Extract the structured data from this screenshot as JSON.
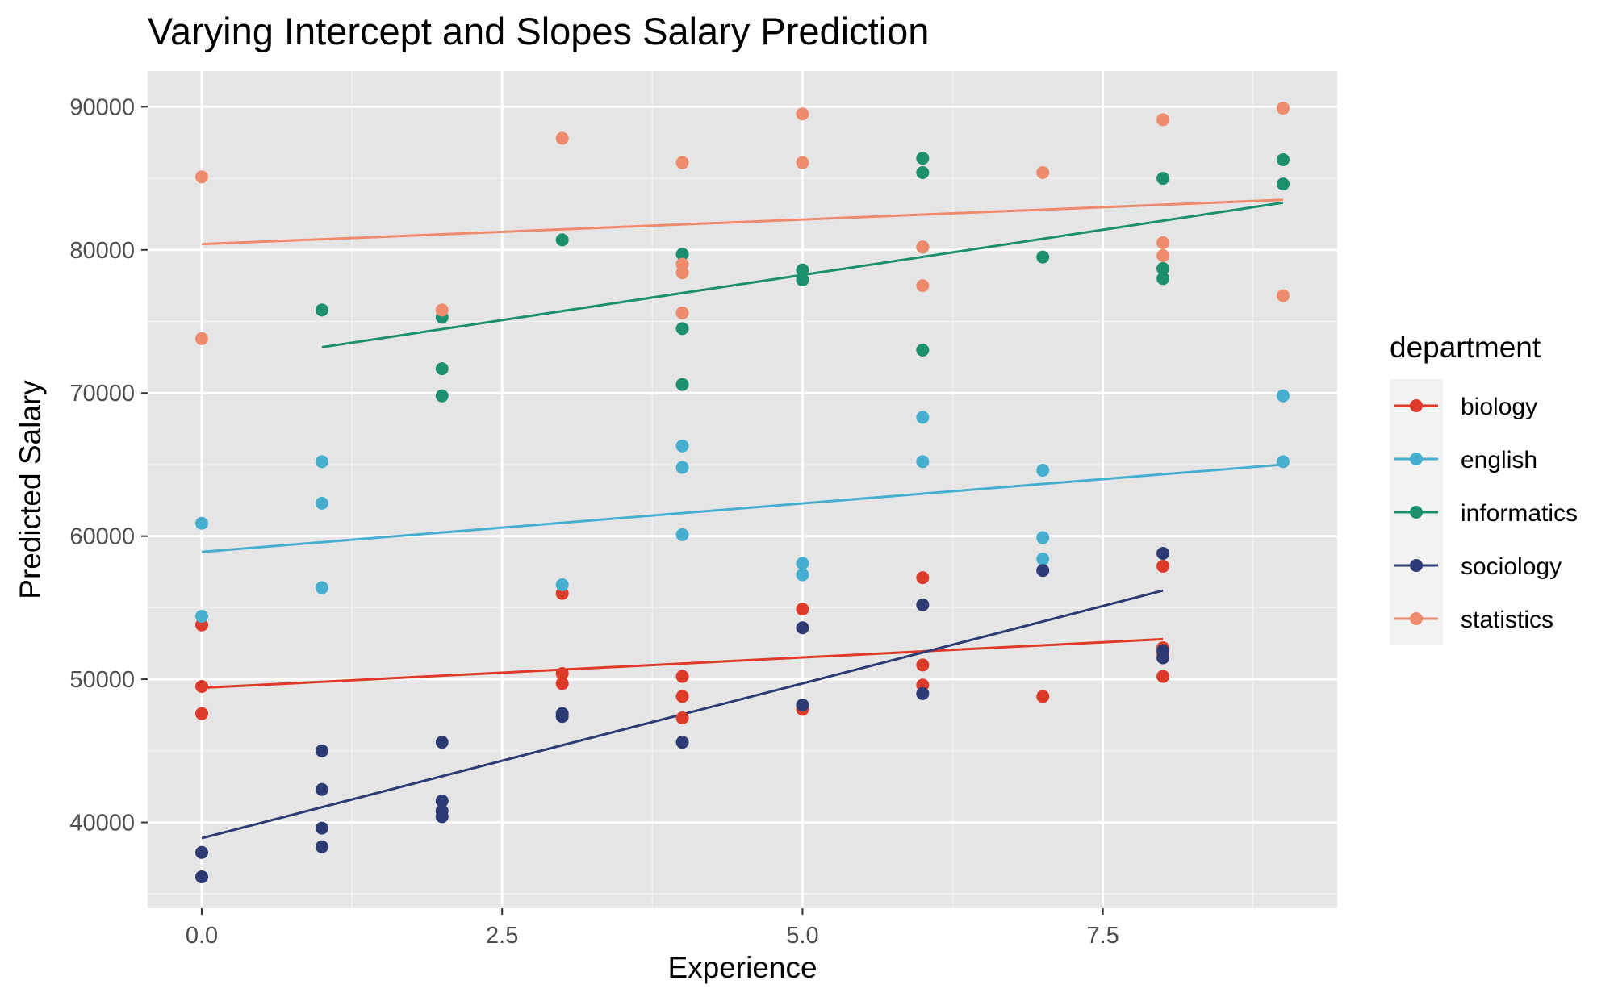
{
  "chart_data": {
    "type": "scatter",
    "title": "Varying Intercept and Slopes Salary Prediction",
    "xlabel": "Experience",
    "ylabel": "Predicted Salary",
    "xlim": [
      -0.45,
      9.45
    ],
    "ylim": [
      34000,
      92500
    ],
    "x_ticks": [
      0,
      2.5,
      5,
      7.5
    ],
    "x_tick_labels": [
      "0.0",
      "2.5",
      "5.0",
      "7.5"
    ],
    "y_ticks": [
      40000,
      50000,
      60000,
      70000,
      80000,
      90000
    ],
    "y_tick_labels": [
      "40000",
      "50000",
      "60000",
      "70000",
      "80000",
      "90000"
    ],
    "grid": true,
    "panel_background": "#e5e5e5",
    "legend": {
      "title": "department",
      "position": "right"
    },
    "series": [
      {
        "name": "biology",
        "color": "#de3a2a",
        "points": [
          [
            0,
            53800
          ],
          [
            0,
            49500
          ],
          [
            0,
            47600
          ],
          [
            3,
            56000
          ],
          [
            3,
            50400
          ],
          [
            3,
            49700
          ],
          [
            4,
            50200
          ],
          [
            4,
            48800
          ],
          [
            4,
            47300
          ],
          [
            5,
            54900
          ],
          [
            5,
            47900
          ],
          [
            6,
            57100
          ],
          [
            6,
            51000
          ],
          [
            6,
            49600
          ],
          [
            7,
            48800
          ],
          [
            8,
            57900
          ],
          [
            8,
            52200
          ],
          [
            8,
            51800
          ],
          [
            8,
            50200
          ]
        ],
        "fit": {
          "x": [
            0,
            8
          ],
          "y": [
            49400,
            52800
          ]
        }
      },
      {
        "name": "english",
        "color": "#46afd0",
        "points": [
          [
            0,
            60900
          ],
          [
            0,
            54400
          ],
          [
            1,
            65200
          ],
          [
            1,
            62300
          ],
          [
            1,
            56400
          ],
          [
            3,
            56600
          ],
          [
            4,
            66300
          ],
          [
            4,
            64800
          ],
          [
            4,
            60100
          ],
          [
            5,
            58100
          ],
          [
            5,
            57300
          ],
          [
            6,
            68300
          ],
          [
            6,
            65200
          ],
          [
            7,
            64600
          ],
          [
            7,
            59900
          ],
          [
            7,
            58400
          ],
          [
            9,
            69800
          ],
          [
            9,
            65200
          ]
        ],
        "fit": {
          "x": [
            0,
            9
          ],
          "y": [
            58900,
            65000
          ]
        }
      },
      {
        "name": "informatics",
        "color": "#1b8f6e",
        "points": [
          [
            1,
            75800
          ],
          [
            2,
            75300
          ],
          [
            2,
            71700
          ],
          [
            2,
            69800
          ],
          [
            3,
            80700
          ],
          [
            4,
            79700
          ],
          [
            4,
            74500
          ],
          [
            4,
            70600
          ],
          [
            5,
            78600
          ],
          [
            5,
            77900
          ],
          [
            6,
            86400
          ],
          [
            6,
            85400
          ],
          [
            6,
            80200
          ],
          [
            6,
            73000
          ],
          [
            7,
            79500
          ],
          [
            8,
            85000
          ],
          [
            8,
            78700
          ],
          [
            8,
            78000
          ],
          [
            9,
            86300
          ],
          [
            9,
            84600
          ]
        ],
        "fit": {
          "x": [
            1,
            9
          ],
          "y": [
            73200,
            83300
          ]
        }
      },
      {
        "name": "sociology",
        "color": "#2d3b74",
        "points": [
          [
            0,
            37900
          ],
          [
            0,
            36200
          ],
          [
            1,
            45000
          ],
          [
            1,
            42300
          ],
          [
            1,
            39600
          ],
          [
            1,
            38300
          ],
          [
            2,
            45600
          ],
          [
            2,
            41500
          ],
          [
            2,
            40800
          ],
          [
            2,
            40400
          ],
          [
            3,
            47600
          ],
          [
            3,
            47400
          ],
          [
            4,
            45600
          ],
          [
            5,
            53600
          ],
          [
            5,
            48200
          ],
          [
            6,
            55200
          ],
          [
            6,
            49000
          ],
          [
            7,
            57600
          ],
          [
            8,
            58800
          ],
          [
            8,
            52000
          ],
          [
            8,
            51500
          ]
        ],
        "fit": {
          "x": [
            0,
            8
          ],
          "y": [
            38900,
            56200
          ]
        }
      },
      {
        "name": "statistics",
        "color": "#ee8b6c",
        "points": [
          [
            0,
            85100
          ],
          [
            0,
            73800
          ],
          [
            2,
            75800
          ],
          [
            3,
            87800
          ],
          [
            4,
            86100
          ],
          [
            4,
            79000
          ],
          [
            4,
            78400
          ],
          [
            4,
            75600
          ],
          [
            5,
            89500
          ],
          [
            5,
            86100
          ],
          [
            6,
            80200
          ],
          [
            6,
            77500
          ],
          [
            7,
            85400
          ],
          [
            8,
            89100
          ],
          [
            8,
            80500
          ],
          [
            8,
            79600
          ],
          [
            9,
            89900
          ],
          [
            9,
            76800
          ]
        ],
        "fit": {
          "x": [
            0,
            9
          ],
          "y": [
            80400,
            83500
          ]
        }
      }
    ]
  }
}
